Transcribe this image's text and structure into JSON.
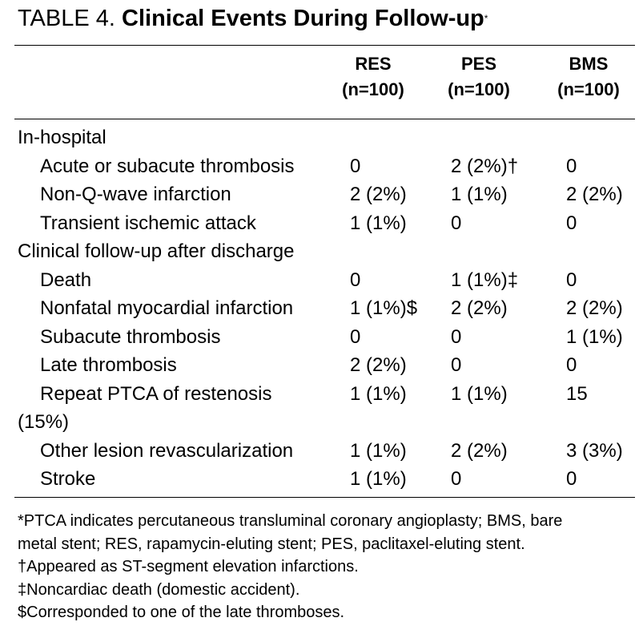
{
  "title": {
    "prefix": "TABLE 4.",
    "main": "Clinical Events During Follow-up",
    "mark": "*"
  },
  "table": {
    "columns": [
      {
        "name": "RES",
        "n": "(n=100)"
      },
      {
        "name": "PES",
        "n": "(n=100)"
      },
      {
        "name": "BMS",
        "n": "(n=100)"
      }
    ],
    "rows": [
      {
        "label": "In-hospital",
        "level": 0
      },
      {
        "label": "Acute or subacute thrombosis",
        "level": 1,
        "cells": [
          "0",
          "2 (2%)†",
          "0"
        ]
      },
      {
        "label": "Non-Q-wave infarction",
        "level": 1,
        "cells": [
          "2 (2%)",
          "1 (1%)",
          "2 (2%)"
        ]
      },
      {
        "label": "Transient ischemic attack",
        "level": 1,
        "cells": [
          "1 (1%)",
          "0",
          "0"
        ]
      },
      {
        "label": "Clinical follow-up after discharge",
        "level": 0
      },
      {
        "label": "Death",
        "level": 1,
        "cells": [
          "0",
          "1 (1%)‡",
          "0"
        ]
      },
      {
        "label": "Nonfatal myocardial infarction",
        "level": 1,
        "cells": [
          "1 (1%)$",
          "2 (2%)",
          "2 (2%)"
        ]
      },
      {
        "label": "Subacute thrombosis",
        "level": 1,
        "cells": [
          "0",
          "0",
          "1 (1%)"
        ]
      },
      {
        "label": "Late thrombosis",
        "level": 1,
        "cells": [
          "2 (2%)",
          "0",
          "0"
        ]
      },
      {
        "label": "Repeat PTCA of restenosis",
        "level": 1,
        "cells": [
          "1 (1%)",
          "1 (1%)",
          "15"
        ],
        "continuation": "(15%)"
      },
      {
        "label": "Other lesion revascularization",
        "level": 1,
        "cells": [
          "1 (1%)",
          "2 (2%)",
          "3 (3%)"
        ]
      },
      {
        "label": "Stroke",
        "level": 1,
        "cells": [
          "1 (1%)",
          "0",
          "0"
        ]
      }
    ]
  },
  "footnotes": [
    "*PTCA indicates percutaneous transluminal coronary angioplasty; BMS, bare",
    "metal stent; RES, rapamycin-eluting stent; PES, paclitaxel-eluting stent.",
    "†Appeared as ST-segment elevation infarctions.",
    "‡Noncardiac death (domestic accident).",
    "$Corresponded to one of the late thromboses."
  ]
}
